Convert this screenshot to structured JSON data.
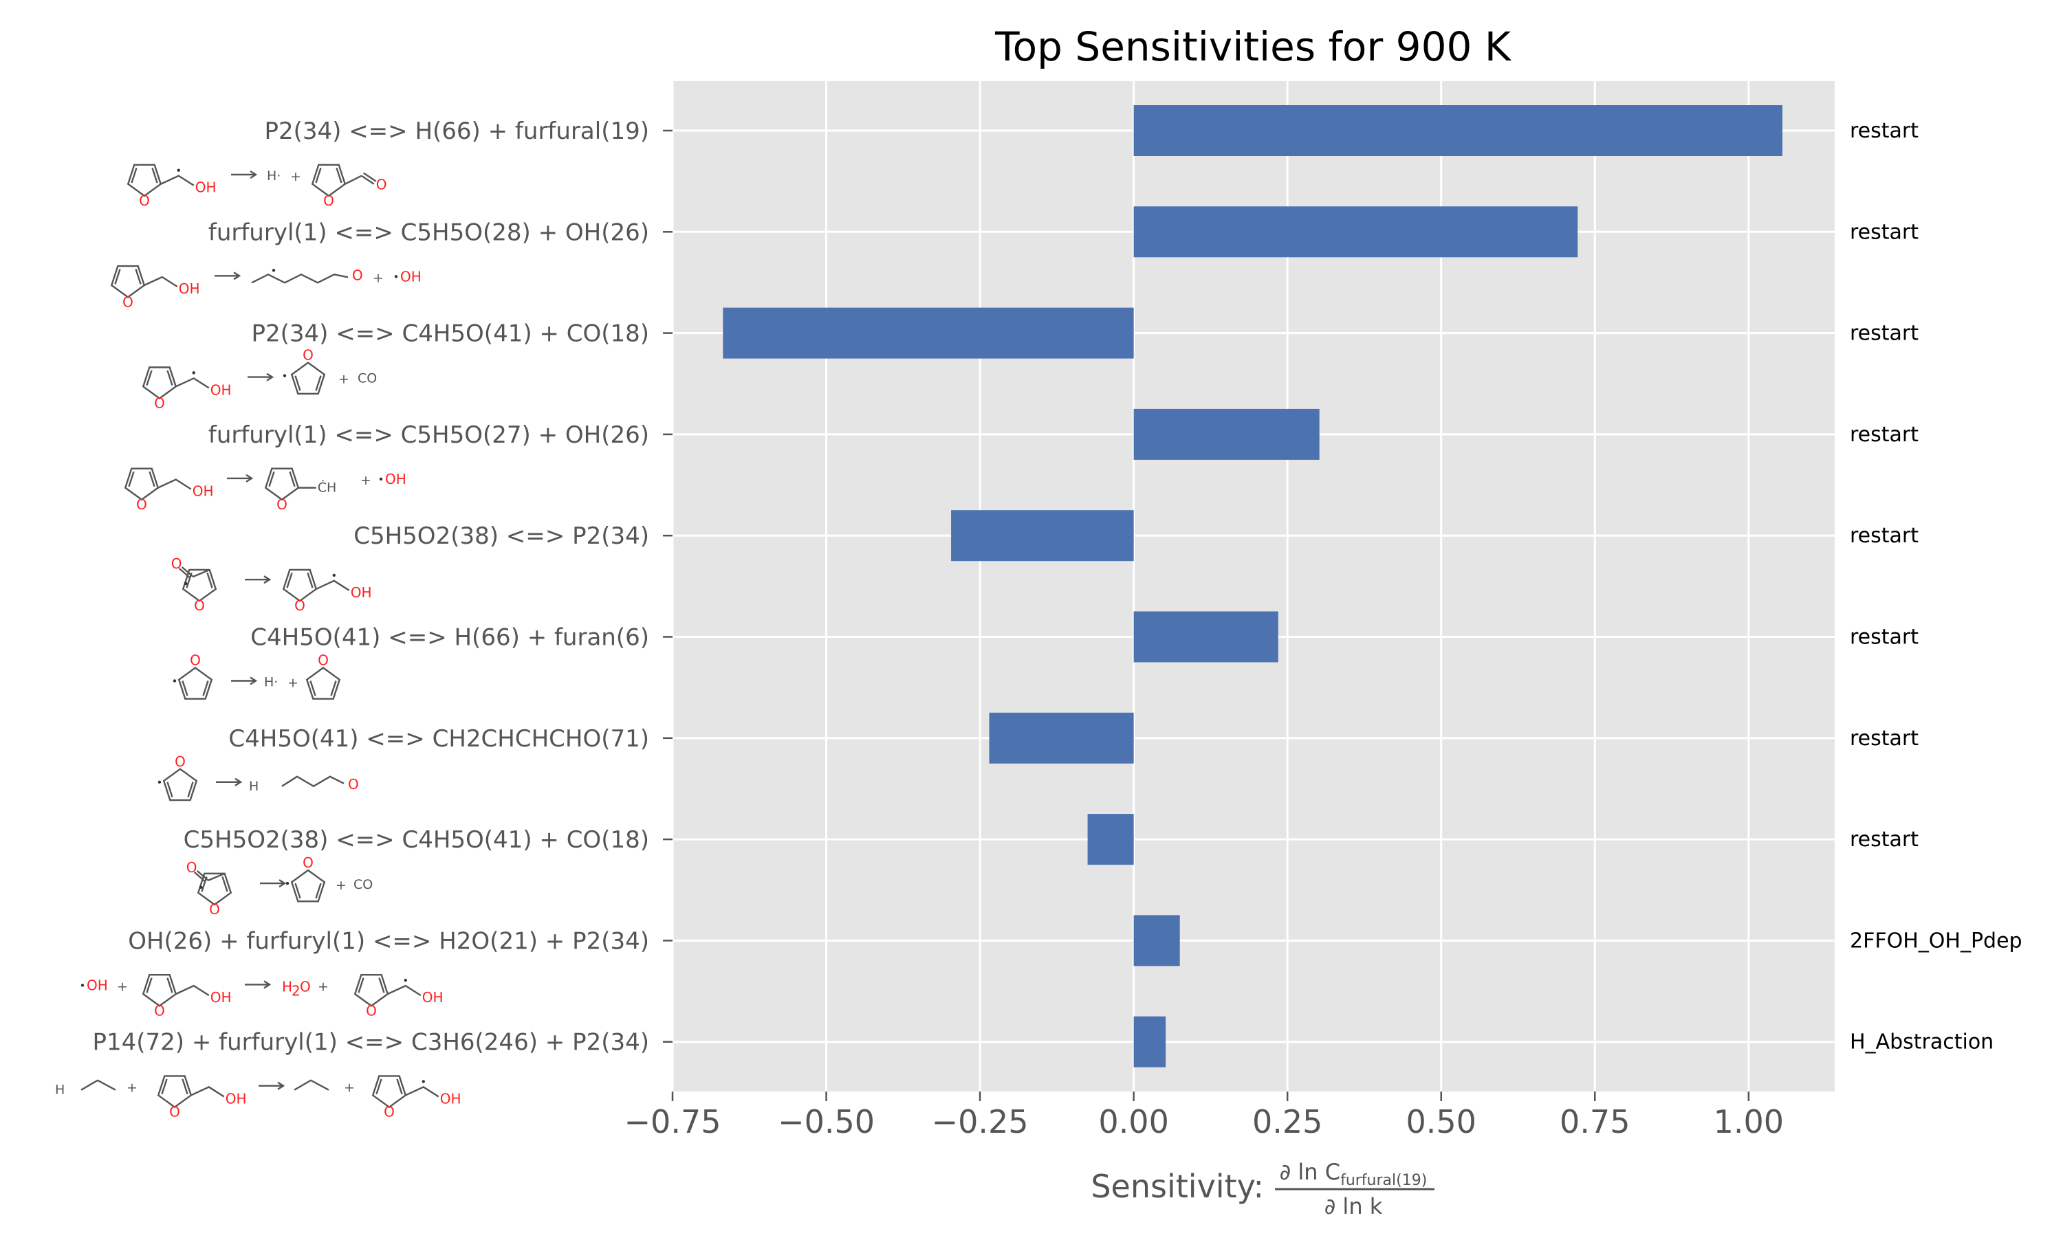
{
  "chart_data": {
    "type": "bar",
    "orientation": "horizontal",
    "title": "Top Sensitivities for 900 K",
    "xlabel": "Sensitivity:",
    "xlabel_fraction": {
      "numerator": "∂ ln C",
      "numerator_sub": "furfural(19)",
      "denominator": "∂ ln k"
    },
    "xlim": [
      -0.75,
      1.14
    ],
    "x_ticks": [
      "−0.75",
      "−0.50",
      "−0.25",
      "0.00",
      "0.25",
      "0.50",
      "0.75",
      "1.00"
    ],
    "x_tick_values": [
      -0.75,
      -0.5,
      -0.25,
      0.0,
      0.25,
      0.5,
      0.75,
      1.0
    ],
    "grid": true,
    "bar_color": "#4c72b0",
    "background_color": "#e5e5e5",
    "categories": [
      "P2(34) <=> H(66) + furfural(19)",
      "furfuryl(1) <=> C5H5O(28) + OH(26)",
      "P2(34) <=> C4H5O(41) + CO(18)",
      "furfuryl(1) <=> C5H5O(27) + OH(26)",
      "C5H5O2(38) <=> P2(34)",
      "C4H5O(41) <=> H(66) + furan(6)",
      "C4H5O(41) <=> CH2CHCHCHO(71)",
      "C5H5O2(38) <=> C4H5O(41) + CO(18)",
      "OH(26) + furfuryl(1) <=> H2O(21) + P2(34)",
      "P14(72) + furfuryl(1) <=> C3H6(246) + P2(34)"
    ],
    "values": [
      1.055,
      0.722,
      -0.668,
      0.302,
      -0.297,
      0.235,
      -0.235,
      -0.075,
      0.075,
      0.052
    ],
    "families": [
      "restart",
      "restart",
      "restart",
      "restart",
      "restart",
      "restart",
      "restart",
      "restart",
      "2FFOH_OH_Pdep",
      "H_Abstraction"
    ]
  },
  "structure_labels": {
    "oh": "OH",
    "o": "O",
    "h_radical": "H·",
    "co": "CO",
    "ch2": "ĊH",
    "h2o_h": "H",
    "h2c": "H",
    "plus": "+",
    "arrow": "→"
  }
}
